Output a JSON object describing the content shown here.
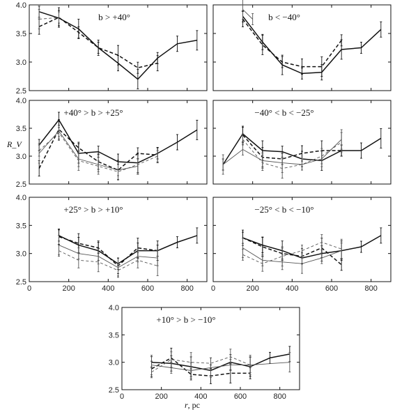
{
  "figure": {
    "ylabel": "R_V",
    "xlabel_var": "r",
    "xlabel_unit": ", pc"
  },
  "chart_data": [
    {
      "type": "line",
      "title": "b > +40°",
      "xlim": [
        0,
        900
      ],
      "ylim": [
        2.5,
        4.0
      ],
      "yticks": [
        "4.0",
        "3.5",
        "3.0",
        "2.5"
      ],
      "xticks": [],
      "series": [
        {
          "style": "solid-bold",
          "x": [
            50,
            150,
            250,
            350,
            450,
            550,
            650,
            750,
            850
          ],
          "y": [
            3.88,
            3.77,
            3.58,
            3.25,
            2.98,
            2.7,
            3.07,
            3.32,
            3.38
          ]
        },
        {
          "style": "dashed-bold",
          "x": [
            50,
            150,
            250,
            350,
            450,
            550,
            650
          ],
          "y": [
            3.62,
            3.78,
            3.52,
            3.25,
            3.12,
            2.9,
            2.98
          ]
        },
        {
          "style": "dashed-thin",
          "x": [
            50,
            150
          ],
          "y": [
            3.75,
            3.78
          ]
        }
      ]
    },
    {
      "type": "line",
      "title": "b < −40°",
      "xlim": [
        0,
        900
      ],
      "ylim": [
        2.5,
        4.0
      ],
      "yticks": [],
      "xticks": [],
      "series": [
        {
          "style": "solid-bold",
          "x": [
            150,
            250,
            350,
            450,
            550,
            650,
            750,
            850
          ],
          "y": [
            3.8,
            3.35,
            2.95,
            2.8,
            2.82,
            3.22,
            3.25,
            3.57
          ]
        },
        {
          "style": "dashed-bold",
          "x": [
            150,
            250,
            350,
            450,
            550,
            650
          ],
          "y": [
            3.75,
            3.3,
            3.0,
            2.92,
            2.92,
            3.38
          ]
        },
        {
          "style": "solid-thin",
          "x": [
            150,
            200
          ],
          "y": [
            3.92,
            3.75
          ]
        }
      ]
    },
    {
      "type": "line",
      "title": "+40° > b > +25°",
      "xlim": [
        0,
        900
      ],
      "ylim": [
        2.5,
        4.0
      ],
      "yticks": [
        "4.0",
        "3.5",
        "3.0",
        "2.5"
      ],
      "xticks": [],
      "series": [
        {
          "style": "solid-bold",
          "x": [
            50,
            150,
            250,
            350,
            450,
            550,
            650,
            750,
            850
          ],
          "y": [
            3.2,
            3.65,
            3.05,
            3.08,
            2.9,
            2.88,
            3.05,
            3.25,
            3.47
          ]
        },
        {
          "style": "dashed-bold",
          "x": [
            50,
            150,
            250,
            350,
            450,
            550,
            650
          ],
          "y": [
            2.78,
            3.48,
            3.15,
            2.9,
            2.75,
            3.05,
            3.02
          ]
        },
        {
          "style": "solid-thin",
          "x": [
            50,
            150,
            250,
            350,
            450,
            550
          ],
          "y": [
            3.05,
            3.45,
            2.95,
            2.85,
            2.75,
            2.82
          ]
        },
        {
          "style": "dashed-thin",
          "x": [
            50,
            150,
            250,
            350,
            450,
            550,
            650
          ],
          "y": [
            3.1,
            3.42,
            2.92,
            2.82,
            2.72,
            2.85,
            3.0
          ]
        }
      ]
    },
    {
      "type": "line",
      "title": "−40° < b < −25°",
      "xlim": [
        0,
        900
      ],
      "ylim": [
        2.5,
        4.0
      ],
      "yticks": [],
      "xticks": [],
      "series": [
        {
          "style": "solid-bold",
          "x": [
            50,
            150,
            250,
            350,
            450,
            550,
            650,
            750,
            850
          ],
          "y": [
            2.85,
            3.4,
            3.1,
            3.08,
            2.95,
            2.92,
            3.1,
            3.1,
            3.32
          ]
        },
        {
          "style": "dashed-bold",
          "x": [
            150,
            250,
            350,
            450,
            550,
            650
          ],
          "y": [
            3.38,
            2.98,
            2.95,
            3.05,
            3.1,
            3.1
          ]
        },
        {
          "style": "solid-thin",
          "x": [
            50,
            150,
            250,
            350,
            450,
            550,
            650
          ],
          "y": [
            2.85,
            3.12,
            2.92,
            2.88,
            2.85,
            2.95,
            3.3
          ]
        },
        {
          "style": "dashed-thin",
          "x": [
            150,
            250,
            350,
            450,
            550,
            650
          ],
          "y": [
            3.3,
            2.88,
            2.78,
            2.85,
            3.0,
            3.25
          ]
        }
      ]
    },
    {
      "type": "line",
      "title": "+25° > b > +10°",
      "xlim": [
        0,
        900
      ],
      "ylim": [
        2.5,
        4.0
      ],
      "yticks": [
        "4.0",
        "3.5",
        "3.0",
        "2.5"
      ],
      "xticks": [
        "0",
        "200",
        "400",
        "600",
        "800"
      ],
      "series": [
        {
          "style": "solid-bold",
          "x": [
            150,
            250,
            350,
            450,
            550,
            650,
            750,
            850
          ],
          "y": [
            3.32,
            3.15,
            3.05,
            2.82,
            3.05,
            3.05,
            3.2,
            3.32
          ]
        },
        {
          "style": "dashed-bold",
          "x": [
            150,
            250,
            350,
            450,
            550,
            650
          ],
          "y": [
            3.3,
            3.18,
            3.1,
            2.78,
            3.1,
            3.05
          ]
        },
        {
          "style": "solid-thin",
          "x": [
            150,
            250,
            350,
            450,
            550,
            650
          ],
          "y": [
            3.15,
            3.0,
            2.95,
            2.75,
            2.95,
            2.92
          ]
        },
        {
          "style": "dashed-thin",
          "x": [
            150,
            250,
            350,
            450,
            550,
            650
          ],
          "y": [
            3.05,
            2.88,
            2.85,
            2.7,
            2.88,
            2.78
          ]
        }
      ]
    },
    {
      "type": "line",
      "title": "−25° < b < −10°",
      "xlim": [
        0,
        900
      ],
      "ylim": [
        2.5,
        4.0
      ],
      "yticks": [],
      "xticks": [
        "0",
        "200",
        "400",
        "600",
        "800"
      ],
      "series": [
        {
          "style": "solid-bold",
          "x": [
            150,
            250,
            350,
            450,
            550,
            650,
            750,
            850
          ],
          "y": [
            3.28,
            3.15,
            3.05,
            2.92,
            3.0,
            3.05,
            3.12,
            3.32
          ]
        },
        {
          "style": "dashed-bold",
          "x": [
            150,
            250,
            350,
            450,
            550,
            650
          ],
          "y": [
            3.28,
            3.12,
            3.0,
            2.95,
            3.1,
            2.8
          ]
        },
        {
          "style": "solid-thin",
          "x": [
            150,
            250,
            350,
            450,
            550,
            650
          ],
          "y": [
            3.1,
            2.88,
            2.85,
            2.82,
            2.92,
            3.05
          ]
        },
        {
          "style": "dashed-thin",
          "x": [
            150,
            250,
            350,
            450,
            550,
            650
          ],
          "y": [
            2.98,
            2.82,
            2.95,
            3.05,
            3.2,
            3.08
          ]
        }
      ]
    },
    {
      "type": "line",
      "title": "+10° > b > −10°",
      "xlim": [
        0,
        900
      ],
      "ylim": [
        2.5,
        4.0
      ],
      "yticks": [
        "4.0",
        "3.5",
        "3.0",
        "2.5"
      ],
      "xticks": [
        "0",
        "200",
        "400",
        "600",
        "800"
      ],
      "series": [
        {
          "style": "solid-bold",
          "x": [
            150,
            250,
            350,
            450,
            550,
            650,
            750,
            850
          ],
          "y": [
            3.0,
            2.98,
            2.92,
            2.85,
            3.0,
            2.92,
            3.08,
            3.15
          ]
        },
        {
          "style": "dashed-bold",
          "x": [
            150,
            250,
            350,
            450,
            550,
            650
          ],
          "y": [
            2.88,
            3.08,
            2.78,
            2.75,
            2.8,
            2.8
          ]
        },
        {
          "style": "solid-thin",
          "x": [
            150,
            250,
            350,
            450,
            550,
            650,
            850
          ],
          "y": [
            2.95,
            2.9,
            2.85,
            2.9,
            2.95,
            2.95,
            3.0
          ]
        },
        {
          "style": "dashed-thin",
          "x": [
            150,
            250,
            350,
            450,
            550,
            650
          ],
          "y": [
            2.82,
            3.05,
            3.0,
            2.98,
            3.1,
            2.95
          ]
        }
      ]
    }
  ]
}
